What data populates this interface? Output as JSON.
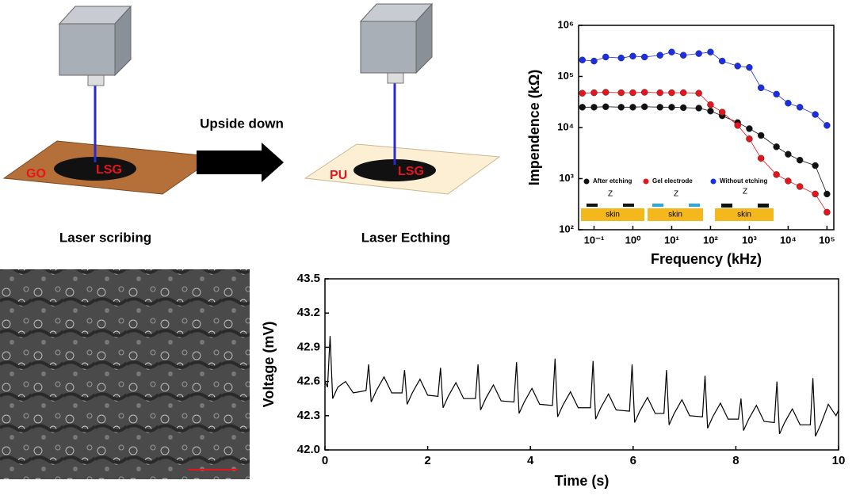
{
  "diagram": {
    "step1": "Laser scribing",
    "step2": "Laser Ecthing",
    "arrow": "Upside down",
    "go": "GO",
    "lsg1": "LSG",
    "pu": "PU",
    "lsg2": "LSG",
    "skin": [
      "skin",
      "skin",
      "skin"
    ],
    "z": [
      "Z",
      "Z",
      "Z"
    ]
  },
  "chart_data": [
    {
      "type": "scatter",
      "xlabel": "Frequency (kHz)",
      "ylabel": "Impendence (kΩ)",
      "xlog": true,
      "ylog": true,
      "xlim": [
        0.04,
        150000
      ],
      "ylim": [
        100,
        1000000
      ],
      "xticks": [
        {
          "value": 0.1,
          "label": "10⁻¹"
        },
        {
          "value": 1,
          "label": "10⁰"
        },
        {
          "value": 10,
          "label": "10¹"
        },
        {
          "value": 100,
          "label": "10²"
        },
        {
          "value": 1000,
          "label": "10³"
        },
        {
          "value": 10000,
          "label": "10⁴"
        },
        {
          "value": 100000,
          "label": "10⁵"
        }
      ],
      "yticks": [
        {
          "value": 100,
          "label": "10²"
        },
        {
          "value": 1000,
          "label": "10³"
        },
        {
          "value": 10000,
          "label": "10⁴"
        },
        {
          "value": 100000,
          "label": "10⁵"
        },
        {
          "value": 1000000,
          "label": "10⁶"
        }
      ],
      "x": [
        0.05,
        0.1,
        0.2,
        0.5,
        1,
        2,
        5,
        10,
        20,
        50,
        100,
        200,
        500,
        1000,
        2000,
        5000,
        10000,
        20000,
        50000,
        100000
      ],
      "series": [
        {
          "name": "After etching",
          "color": "#111111",
          "values": [
            25000,
            25000,
            25500,
            25000,
            25000,
            25500,
            25000,
            25000,
            24500,
            24000,
            21000,
            17000,
            12500,
            9500,
            7000,
            4200,
            3000,
            2300,
            1800,
            500
          ]
        },
        {
          "name": "Gel electrode",
          "color": "#e8141c",
          "values": [
            47000,
            48000,
            49000,
            48000,
            48000,
            49000,
            48000,
            48000,
            48000,
            47000,
            28000,
            20000,
            11000,
            6000,
            2500,
            1200,
            900,
            700,
            500,
            220
          ]
        },
        {
          "name": "Without etching",
          "color": "#1a2ee8",
          "values": [
            210000,
            200000,
            240000,
            230000,
            250000,
            240000,
            260000,
            300000,
            260000,
            280000,
            300000,
            200000,
            160000,
            150000,
            60000,
            45000,
            30000,
            25000,
            18000,
            11000
          ]
        }
      ]
    },
    {
      "type": "line",
      "xlabel": "Time (s)",
      "ylabel": "Voltage (mV)",
      "color": "#000000",
      "xlim": [
        0,
        10
      ],
      "ylim": [
        42,
        43.5
      ],
      "xticks": [
        0,
        2,
        4,
        6,
        8,
        10
      ],
      "yticks": [
        {
          "value": 42,
          "label": "42.0"
        },
        42.3,
        42.6,
        42.9,
        43.2,
        43.5
      ],
      "x": [
        0,
        0.05,
        0.1,
        0.15,
        0.25,
        0.4,
        0.55,
        0.8,
        0.85,
        0.9,
        1.0,
        1.15,
        1.3,
        1.5,
        1.55,
        1.6,
        1.7,
        1.85,
        2.0,
        2.2,
        2.25,
        2.3,
        2.4,
        2.55,
        2.7,
        2.93,
        2.98,
        3.03,
        3.13,
        3.28,
        3.43,
        3.68,
        3.73,
        3.78,
        3.88,
        4.03,
        4.18,
        4.43,
        4.48,
        4.53,
        4.63,
        4.78,
        4.93,
        5.17,
        5.22,
        5.27,
        5.37,
        5.52,
        5.67,
        5.93,
        5.98,
        6.03,
        6.13,
        6.28,
        6.43,
        6.6,
        6.65,
        6.7,
        6.8,
        6.95,
        7.1,
        7.35,
        7.4,
        7.45,
        7.55,
        7.7,
        7.85,
        8.05,
        8.1,
        8.15,
        8.25,
        8.4,
        8.55,
        8.75,
        8.8,
        8.85,
        8.95,
        9.1,
        9.25,
        9.45,
        9.5,
        9.55,
        9.65,
        9.8,
        9.95,
        10
      ],
      "values": [
        42.6,
        42.55,
        43.0,
        42.45,
        42.55,
        42.6,
        42.5,
        42.52,
        42.75,
        42.42,
        42.52,
        42.64,
        42.5,
        42.5,
        42.7,
        42.4,
        42.5,
        42.62,
        42.48,
        42.47,
        42.72,
        42.37,
        42.47,
        42.59,
        42.45,
        42.45,
        42.75,
        42.35,
        42.45,
        42.57,
        42.43,
        42.42,
        42.77,
        42.32,
        42.42,
        42.54,
        42.4,
        42.39,
        42.8,
        42.29,
        42.39,
        42.51,
        42.37,
        42.37,
        42.78,
        42.27,
        42.37,
        42.49,
        42.35,
        42.34,
        42.75,
        42.24,
        42.34,
        42.46,
        42.32,
        42.32,
        42.7,
        42.22,
        42.32,
        42.44,
        42.3,
        42.29,
        42.65,
        42.19,
        42.29,
        42.41,
        42.27,
        42.27,
        42.45,
        42.17,
        42.27,
        42.39,
        42.25,
        42.24,
        42.6,
        42.14,
        42.24,
        42.36,
        42.22,
        42.22,
        42.63,
        42.12,
        42.22,
        42.4,
        42.3,
        42.35
      ]
    }
  ]
}
